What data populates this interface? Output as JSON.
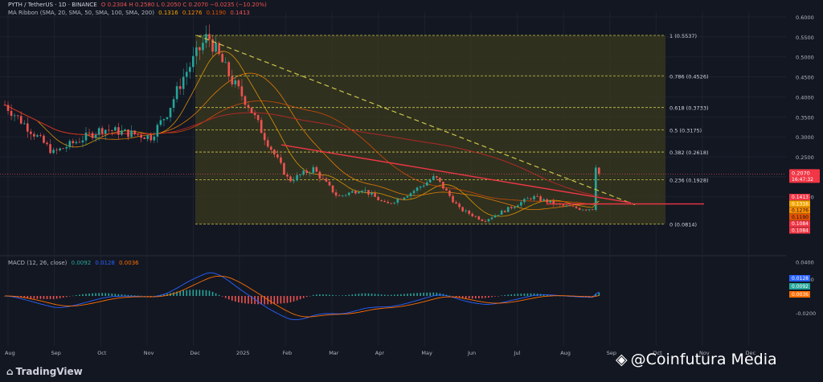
{
  "header": {
    "symbol": "PYTH / TetherUS · 1D · BINANCE",
    "ohlc": "O 0.2304  H 0.2580  L 0.2050  C 0.2070  −0.0235 (−10.20%)",
    "ribbon_label": "MA Ribbon (SMA, 20, SMA, 50, SMA, 100, SMA, 200)",
    "ribbon_values": [
      "0.1316",
      "0.1276",
      "0.1190",
      "0.1413"
    ],
    "macd_label": "MACD (12, 26, close)",
    "macd_values": [
      "0.0092",
      "0.0128",
      "0.0036"
    ]
  },
  "watermarks": {
    "tradingview": "TradingView",
    "source": "@Coinfutura Media"
  },
  "colors": {
    "bg": "#131722",
    "up": "#26a69a",
    "down": "#ef5350",
    "fib_fill": "#3b3a1f",
    "fib_line": "#c8c44a",
    "trend": "#f23645",
    "ma20": "#f7a600",
    "ma50": "#ff8c00",
    "ma100": "#e65100",
    "ma200": "#c62828",
    "macd": "#2962ff",
    "signal": "#ff6d00"
  },
  "chart_data": [
    {
      "type": "candlestick",
      "x_labels": [
        "Aug",
        "Sep",
        "Oct",
        "Nov",
        "Dec",
        "2025",
        "Feb",
        "Mar",
        "Apr",
        "May",
        "Jun",
        "Jul",
        "Aug",
        "Sep",
        "Oct",
        "Nov",
        "Dec"
      ],
      "y_ticks": [
        "0.6000",
        "0.5500",
        "0.5000",
        "0.4500",
        "0.4000",
        "0.3500",
        "0.3000",
        "0.2500",
        "0.2000",
        "0.1500"
      ],
      "ylim": [
        0.055,
        0.61
      ],
      "last_price": "0.2070",
      "countdown": "16:47:32",
      "ma_tags": [
        "0.1413",
        "0.1316",
        "0.1276",
        "0.1190",
        "0.1084",
        "0.1084"
      ],
      "fib_levels": [
        {
          "label": "1 (0.5537)",
          "value": 0.5537
        },
        {
          "label": "0.786 (0.4526)",
          "value": 0.4526
        },
        {
          "label": "0.618 (0.3733)",
          "value": 0.3733
        },
        {
          "label": "0.5 (0.3175)",
          "value": 0.3175
        },
        {
          "label": "0.382 (0.2618)",
          "value": 0.2618
        },
        {
          "label": "0.236 (0.1928)",
          "value": 0.1928
        },
        {
          "label": "0 (0.0814)",
          "value": 0.0814
        }
      ],
      "series": [
        {
          "name": "price",
          "x_day": [
            0,
            30,
            60,
            90,
            100,
            110,
            125,
            140,
            150,
            160,
            175,
            190,
            205,
            220,
            235,
            250,
            265,
            280,
            295,
            310,
            325,
            340,
            355,
            362,
            364,
            366
          ],
          "values": [
            0.38,
            0.26,
            0.32,
            0.3,
            0.36,
            0.45,
            0.5537,
            0.44,
            0.38,
            0.3,
            0.19,
            0.22,
            0.15,
            0.17,
            0.13,
            0.16,
            0.2,
            0.12,
            0.09,
            0.12,
            0.15,
            0.13,
            0.12,
            0.12,
            0.23,
            0.207
          ]
        }
      ]
    },
    {
      "type": "macd",
      "y_ticks": [
        "0.0400",
        "0.0200",
        "-0.0200"
      ],
      "ylim": [
        -0.045,
        0.045
      ],
      "tags": [
        "0.0128",
        "0.0092",
        "0.0036"
      ]
    }
  ]
}
